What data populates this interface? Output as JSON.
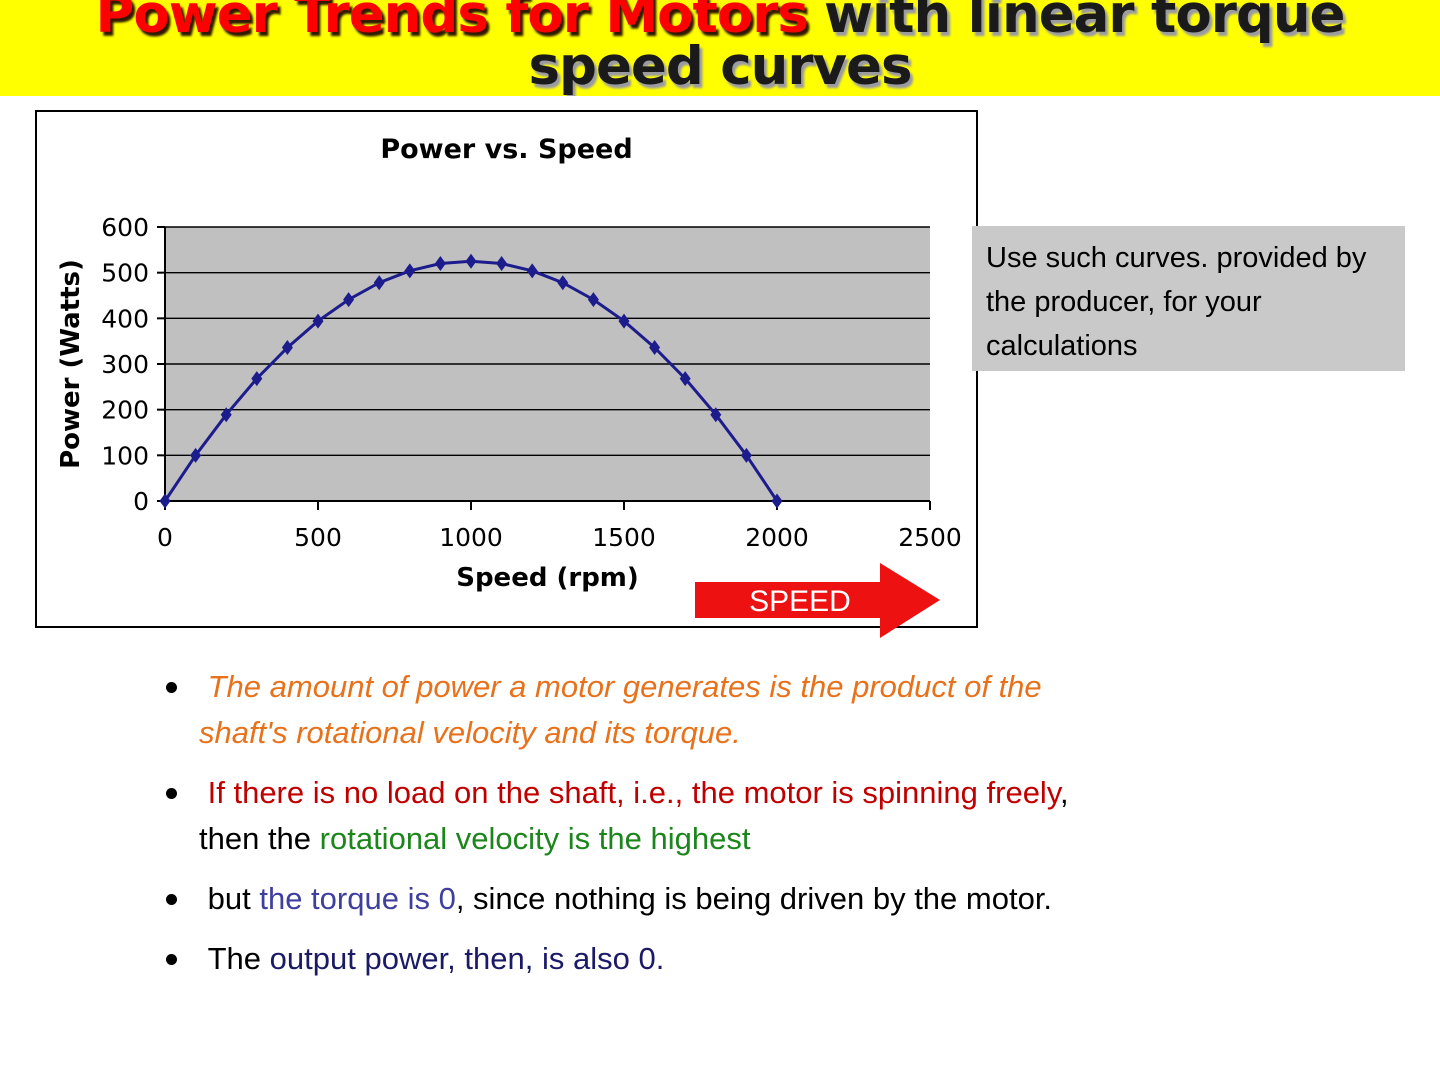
{
  "header": {
    "title_red": "Power Trends for Motors",
    "title_dark_line1": "with linear torque",
    "title_dark_line2": "speed curves",
    "bg_color": "#FFFF00",
    "red_color": "#FF0000"
  },
  "chart_data": {
    "type": "line",
    "title": "Power vs. Speed",
    "xlabel": "Speed (rpm)",
    "ylabel": "Power (Watts)",
    "x": [
      0,
      100,
      200,
      300,
      400,
      500,
      600,
      700,
      800,
      900,
      1000,
      1100,
      1200,
      1300,
      1400,
      1500,
      1600,
      1700,
      1800,
      1900,
      2000
    ],
    "y": [
      0,
      100,
      189,
      268,
      336,
      394,
      441,
      478,
      504,
      520,
      525,
      520,
      504,
      478,
      441,
      394,
      336,
      268,
      189,
      100,
      0
    ],
    "xlim": [
      0,
      2500
    ],
    "ylim": [
      0,
      600
    ],
    "xticks": [
      0,
      500,
      1000,
      1500,
      2000,
      2500
    ],
    "yticks": [
      0,
      100,
      200,
      300,
      400,
      500,
      600
    ],
    "grid": true,
    "legend": "none",
    "line_color": "#1C1C8C",
    "marker": "diamond",
    "plot_bg": "#C0C0C0",
    "gridline_color": "#000000"
  },
  "callout": {
    "text": "Use such curves. provided by the producer, for your calculations",
    "bg": "#C9C9C9"
  },
  "speed_arrow": {
    "label": "SPEED",
    "color": "#EE1111"
  },
  "bullets": [
    {
      "italic": true,
      "segments": [
        {
          "text": " The amount of power a motor generates is the product of the",
          "color": "#E8721C"
        },
        {
          "br": true
        },
        {
          "text": "shaft's rotational velocity and its torque.",
          "color": "#E8721C"
        }
      ]
    },
    {
      "italic": false,
      "segments": [
        {
          "text": " If there is no load on the shaft, i.e., the motor is spinning freely",
          "color": "#C00000"
        },
        {
          "text": ",",
          "color": "#000000"
        },
        {
          "br": true
        },
        {
          "text": "then the ",
          "color": "#000000"
        },
        {
          "text": "rotational velocity is the highest",
          "color": "#1C851C"
        }
      ]
    },
    {
      "italic": false,
      "segments": [
        {
          "text": " but ",
          "color": "#000000"
        },
        {
          "text": "the torque is 0",
          "color": "#3F3F9E"
        },
        {
          "text": ", since nothing is being driven by the motor.",
          "color": "#000000"
        }
      ]
    },
    {
      "italic": false,
      "segments": [
        {
          "text": " The ",
          "color": "#000000"
        },
        {
          "text": "output power, then, is also 0.",
          "color": "#1A1A66"
        }
      ]
    }
  ]
}
